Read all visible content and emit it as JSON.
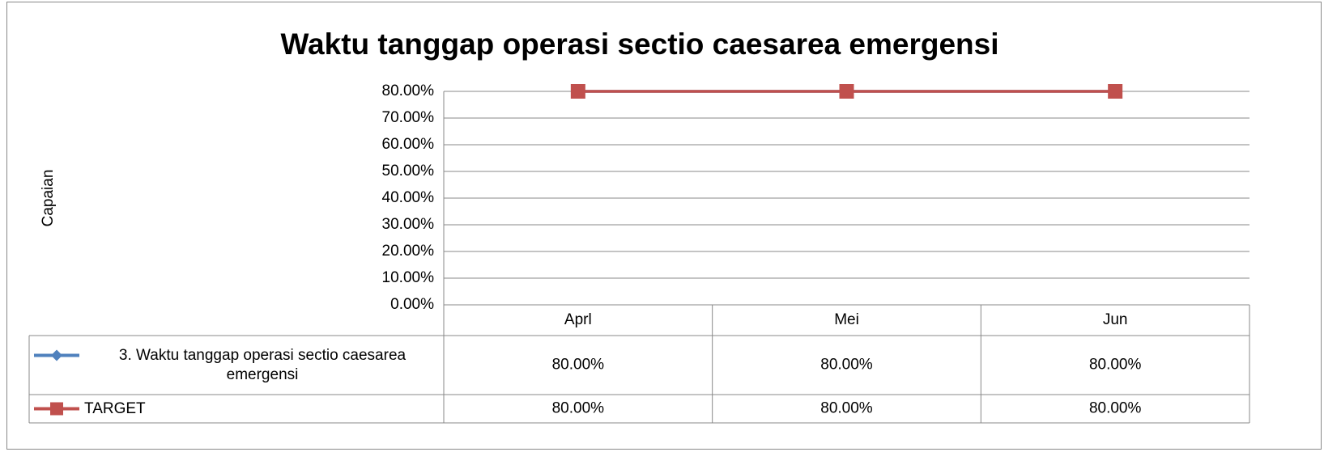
{
  "chart_data": {
    "type": "line",
    "title": "Waktu tanggap operasi sectio caesarea emergensi",
    "y_label": "Capaian",
    "categories": [
      "Aprl",
      "Mei",
      "Jun"
    ],
    "series": [
      {
        "name": "3. Waktu tanggap operasi sectio caesarea emergensi",
        "color": "#4f81bd",
        "marker": "diamond",
        "values": [
          80,
          80,
          80
        ],
        "value_labels": [
          "80.00%",
          "80.00%",
          "80.00%"
        ]
      },
      {
        "name": "TARGET",
        "color": "#c0504d",
        "marker": "square",
        "values": [
          80,
          80,
          80
        ],
        "value_labels": [
          "80.00%",
          "80.00%",
          "80.00%"
        ]
      }
    ],
    "ylim": [
      0,
      80
    ],
    "yticks": [
      {
        "value": 0,
        "label": "0.00%"
      },
      {
        "value": 10,
        "label": "10.00%"
      },
      {
        "value": 20,
        "label": "20.00%"
      },
      {
        "value": 30,
        "label": "30.00%"
      },
      {
        "value": 40,
        "label": "40.00%"
      },
      {
        "value": 50,
        "label": "50.00%"
      },
      {
        "value": 60,
        "label": "60.00%"
      },
      {
        "value": 70,
        "label": "70.00%"
      },
      {
        "value": 80,
        "label": "80.00%"
      }
    ],
    "grid": true,
    "data_table": true
  }
}
